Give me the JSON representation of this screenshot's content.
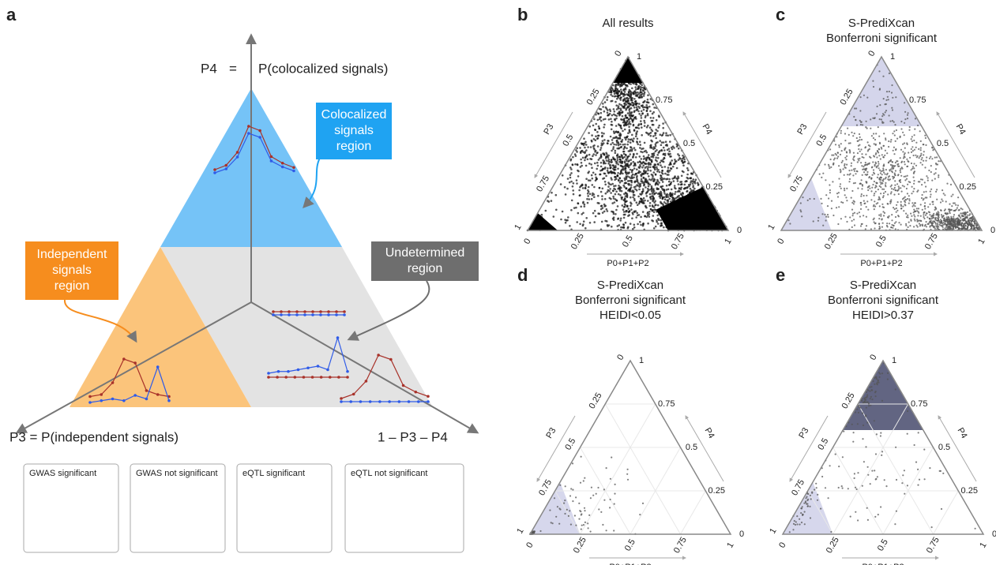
{
  "panels": {
    "a": {
      "label": "a",
      "top_axis": {
        "name": "P4",
        "equals": "=",
        "definition": "P(colocalized signals)"
      },
      "left_axis": "P3 = P(independent signals)",
      "right_axis": "1 – P3 – P4",
      "regions": {
        "colocalized": [
          "Colocalized",
          "signals",
          "region"
        ],
        "independent": [
          "Independent",
          "signals",
          "region"
        ],
        "undetermined": [
          "Undetermined",
          "region"
        ]
      },
      "legend": [
        "GWAS significant",
        "GWAS not significant",
        "eQTL significant",
        "eQTL not significant"
      ]
    },
    "b": {
      "label": "b",
      "title": [
        "All results"
      ]
    },
    "c": {
      "label": "c",
      "title": [
        "S-PrediXcan",
        "Bonferroni significant"
      ]
    },
    "d": {
      "label": "d",
      "title": [
        "S-PrediXcan",
        "Bonferroni significant",
        "HEIDI<0.05"
      ]
    },
    "e": {
      "label": "e",
      "title": [
        "S-PrediXcan",
        "Bonferroni significant",
        "HEIDI>0.37"
      ]
    }
  },
  "ternary_axes": {
    "left": "P3",
    "right": "P4",
    "bottom": "P0+P1+P2",
    "ticks": [
      "0",
      "0.25",
      "0.5",
      "0.75",
      "1"
    ]
  }
}
